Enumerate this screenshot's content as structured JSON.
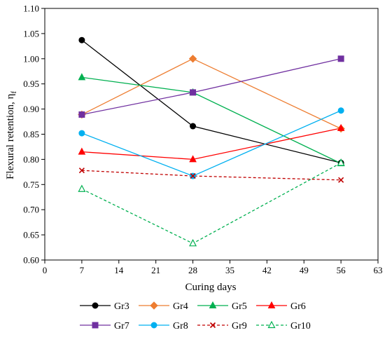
{
  "chart_data": {
    "type": "line",
    "xlabel": "Curing days",
    "ylabel": "Flexural retention, η",
    "ylabel_sub": "f",
    "xlim": [
      0,
      63
    ],
    "ylim": [
      0.6,
      1.1
    ],
    "xticks": [
      0,
      7,
      14,
      21,
      28,
      35,
      42,
      49,
      56,
      63
    ],
    "yticks": [
      0.6,
      0.65,
      0.7,
      0.75,
      0.8,
      0.85,
      0.9,
      0.95,
      1.0,
      1.05,
      1.1
    ],
    "x": [
      7,
      28,
      56
    ],
    "grid": false,
    "legend_position": "bottom",
    "series": [
      {
        "name": "Gr3",
        "values": [
          1.037,
          0.866,
          0.793
        ],
        "color": "#000000",
        "marker": "circle",
        "dash": "solid"
      },
      {
        "name": "Gr4",
        "values": [
          0.889,
          1.0,
          0.861
        ],
        "color": "#ED7D31",
        "marker": "diamond",
        "dash": "solid"
      },
      {
        "name": "Gr5",
        "values": [
          0.963,
          0.933,
          0.792
        ],
        "color": "#00B050",
        "marker": "triangle",
        "dash": "solid"
      },
      {
        "name": "Gr6",
        "values": [
          0.815,
          0.8,
          0.862
        ],
        "color": "#FF0000",
        "marker": "triangle",
        "dash": "solid"
      },
      {
        "name": "Gr7",
        "values": [
          0.889,
          0.933,
          1.0
        ],
        "color": "#7030A0",
        "marker": "square",
        "dash": "solid"
      },
      {
        "name": "Gr8",
        "values": [
          0.852,
          0.767,
          0.897
        ],
        "color": "#00B0F0",
        "marker": "circle",
        "dash": "solid"
      },
      {
        "name": "Gr9",
        "values": [
          0.778,
          0.767,
          0.759
        ],
        "color": "#C00000",
        "marker": "x",
        "dash": "dashed"
      },
      {
        "name": "Gr10",
        "values": [
          0.741,
          0.633,
          0.793
        ],
        "color": "#00B050",
        "marker": "triangle-open",
        "dash": "dashed"
      }
    ]
  }
}
